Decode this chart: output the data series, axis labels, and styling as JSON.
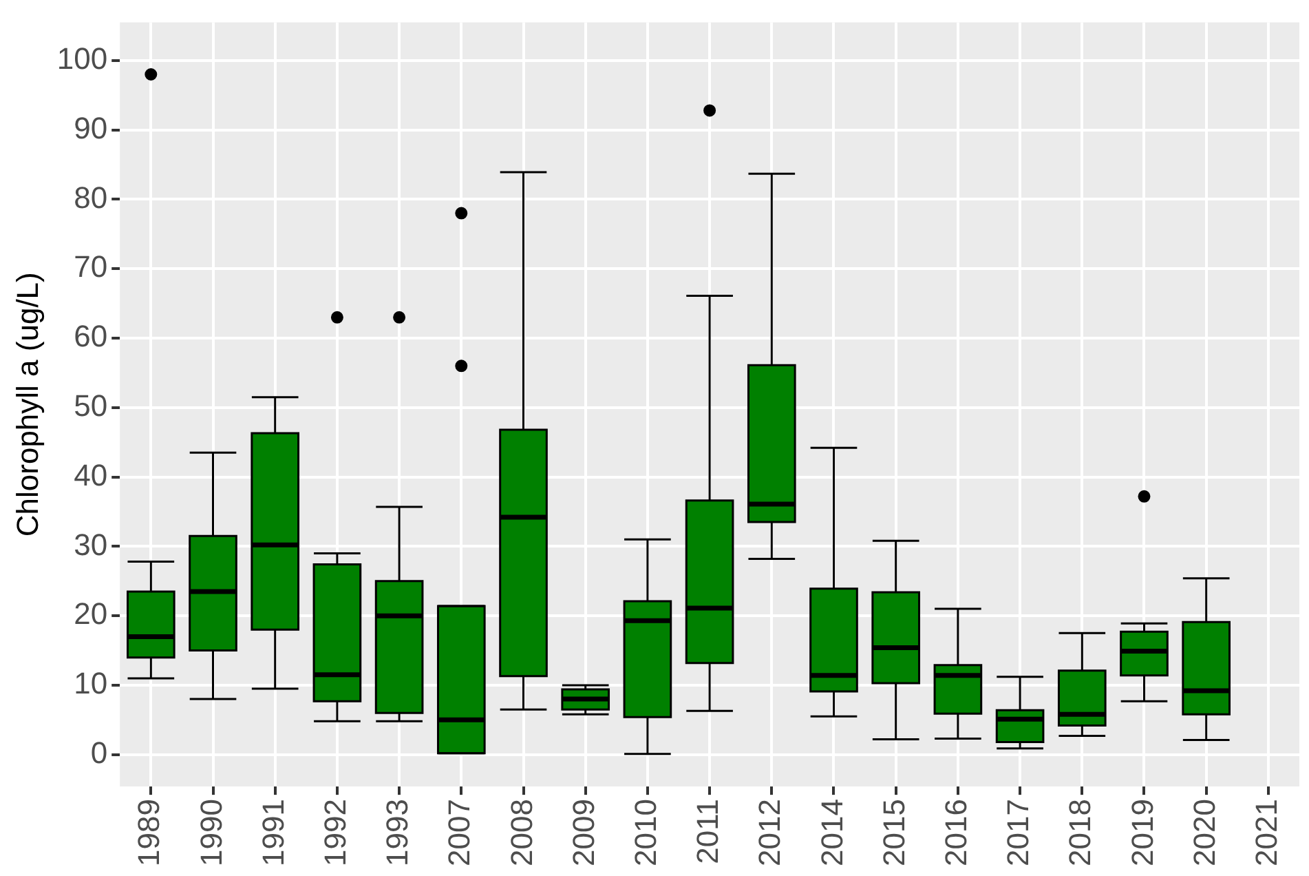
{
  "chart_data": {
    "type": "box",
    "ylabel": "Chlorophyll a (ug/L)",
    "categories": [
      "1989",
      "1990",
      "1991",
      "1992",
      "1993",
      "2007",
      "2008",
      "2009",
      "2010",
      "2011",
      "2012",
      "2014",
      "2015",
      "2016",
      "2017",
      "2018",
      "2019",
      "2020",
      "2021"
    ],
    "ylim": [
      -4.6,
      105.5
    ],
    "yticks": [
      0,
      10,
      20,
      30,
      40,
      50,
      60,
      70,
      80,
      90,
      100
    ],
    "grid": true,
    "series": [
      {
        "color": "#008000",
        "boxes": [
          {
            "low": 11,
            "q1": 14,
            "median": 17,
            "q3": 23.5,
            "high": 27.8,
            "outliers": [
              98
            ]
          },
          {
            "low": 8,
            "q1": 15,
            "median": 23.5,
            "q3": 31.5,
            "high": 43.5
          },
          {
            "low": 9.5,
            "q1": 18,
            "median": 30.2,
            "q3": 46.3,
            "high": 51.5
          },
          {
            "low": 4.8,
            "q1": 7.7,
            "median": 11.5,
            "q3": 27.4,
            "high": 29,
            "outliers": [
              63
            ]
          },
          {
            "low": 4.8,
            "q1": 6,
            "median": 20,
            "q3": 25,
            "high": 35.7,
            "outliers": [
              63
            ]
          },
          {
            "low": 0.2,
            "q1": 0.2,
            "median": 5,
            "q3": 21.4,
            "high": 21.4,
            "outliers": [
              78,
              56
            ]
          },
          {
            "low": 6.5,
            "q1": 11.3,
            "median": 34.2,
            "q3": 46.8,
            "high": 83.9
          },
          {
            "low": 5.8,
            "q1": 6.5,
            "median": 8,
            "q3": 9.4,
            "high": 10
          },
          {
            "low": 0.1,
            "q1": 5.4,
            "median": 19.3,
            "q3": 22.1,
            "high": 31
          },
          {
            "low": 6.3,
            "q1": 13.2,
            "median": 21.1,
            "q3": 36.6,
            "high": 66.1,
            "outliers": [
              92.8
            ]
          },
          {
            "low": 28.2,
            "q1": 33.5,
            "median": 36.1,
            "q3": 56.1,
            "high": 83.7
          },
          {
            "low": 5.5,
            "q1": 9.1,
            "median": 11.4,
            "q3": 23.9,
            "high": 44.2
          },
          {
            "low": 2.2,
            "q1": 10.3,
            "median": 15.4,
            "q3": 23.4,
            "high": 30.8
          },
          {
            "low": 2.3,
            "q1": 5.9,
            "median": 11.4,
            "q3": 12.9,
            "high": 21
          },
          {
            "low": 0.9,
            "q1": 1.8,
            "median": 5.1,
            "q3": 6.4,
            "high": 11.2
          },
          {
            "low": 2.7,
            "q1": 4.2,
            "median": 5.8,
            "q3": 12.1,
            "high": 17.5
          },
          {
            "low": 7.7,
            "q1": 11.4,
            "median": 14.9,
            "q3": 17.7,
            "high": 18.9,
            "outliers": [
              37.2
            ]
          },
          {
            "low": 2.1,
            "q1": 5.8,
            "median": 9.2,
            "q3": 19.1,
            "high": 25.4
          },
          null
        ]
      }
    ]
  }
}
